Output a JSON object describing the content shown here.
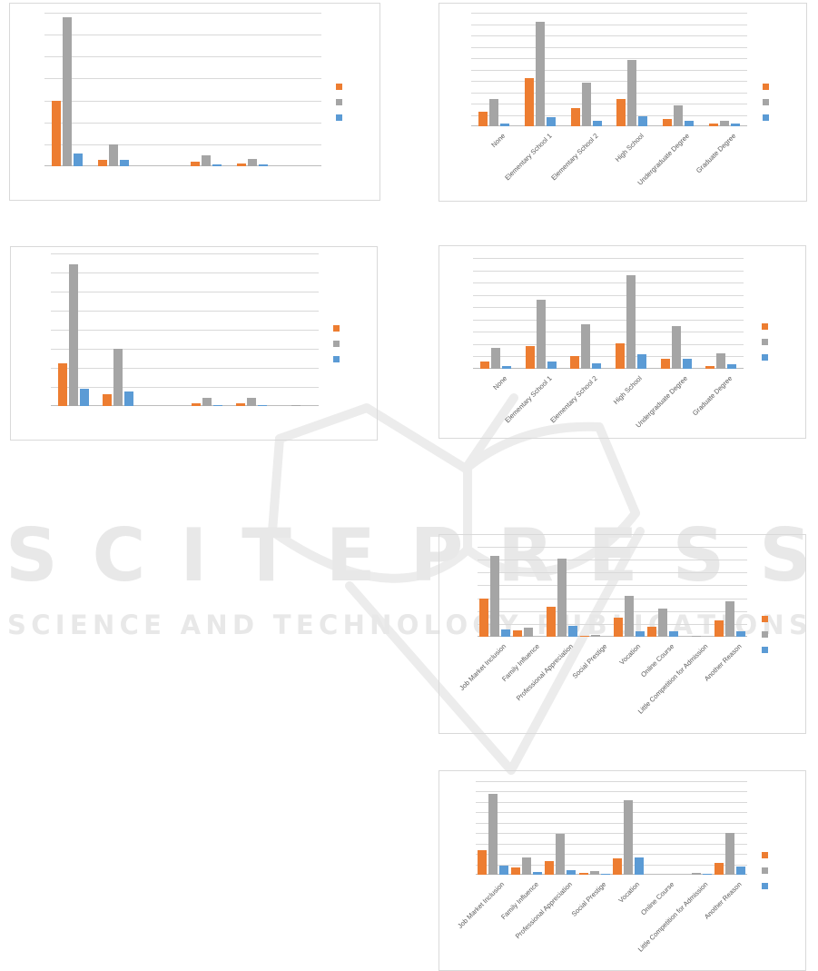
{
  "watermark": {
    "brand": "SCITEPRESS",
    "tagline": "SCIENCE AND TECHNOLOGY PUBLICATIONS",
    "color": "#e8e8e8"
  },
  "colors": {
    "series_orange": "#ED7D31",
    "series_gray": "#A5A5A5",
    "series_blue": "#5B9BD5",
    "gridline": "#D9D9D9",
    "chart_border": "#D9D9D9",
    "axis_label_text": "#595959"
  },
  "chart_data": [
    {
      "id": "c1",
      "position": "top-left",
      "type": "bar",
      "title": "",
      "xlabel": "",
      "ylabel": "",
      "axis_labels_visible": false,
      "gridline_intervals": 7,
      "ylim": [
        0,
        7
      ],
      "legend_position": "right",
      "legend_labels_visible": false,
      "categories": [
        "",
        "",
        "",
        "",
        "",
        ""
      ],
      "series": [
        {
          "name": "orange",
          "color": "#ED7D31",
          "values": [
            3.0,
            0.3,
            0,
            0.2,
            0.12,
            0
          ]
        },
        {
          "name": "gray",
          "color": "#A5A5A5",
          "values": [
            6.8,
            1.0,
            0,
            0.5,
            0.33,
            0
          ]
        },
        {
          "name": "blue",
          "color": "#5B9BD5",
          "values": [
            0.6,
            0.3,
            0,
            0.07,
            0.07,
            0
          ]
        }
      ]
    },
    {
      "id": "c2",
      "position": "top-right",
      "type": "bar",
      "title": "",
      "xlabel": "",
      "ylabel": "",
      "axis_labels_visible": true,
      "gridline_intervals": 10,
      "ylim": [
        0,
        10
      ],
      "legend_position": "right",
      "legend_labels_visible": false,
      "categories": [
        "None",
        "Elementary School 1",
        "Elementary School 2",
        "High School",
        "Undergraduate Degree",
        "Graduate Degree"
      ],
      "series": [
        {
          "name": "orange",
          "color": "#ED7D31",
          "values": [
            1.3,
            4.2,
            1.6,
            2.4,
            0.6,
            0.2
          ]
        },
        {
          "name": "gray",
          "color": "#A5A5A5",
          "values": [
            2.4,
            9.2,
            3.8,
            5.8,
            1.8,
            0.5
          ]
        },
        {
          "name": "blue",
          "color": "#5B9BD5",
          "values": [
            0.25,
            0.8,
            0.45,
            0.9,
            0.45,
            0.25
          ]
        }
      ]
    },
    {
      "id": "c3",
      "position": "middle-left",
      "type": "bar",
      "title": "",
      "xlabel": "",
      "ylabel": "",
      "axis_labels_visible": false,
      "gridline_intervals": 8,
      "ylim": [
        0,
        8
      ],
      "legend_position": "right",
      "legend_labels_visible": false,
      "categories": [
        "",
        "",
        "",
        "",
        "",
        ""
      ],
      "series": [
        {
          "name": "orange",
          "color": "#ED7D31",
          "values": [
            2.25,
            0.6,
            0,
            0.16,
            0.13,
            0
          ]
        },
        {
          "name": "gray",
          "color": "#A5A5A5",
          "values": [
            7.45,
            3.0,
            0,
            0.44,
            0.43,
            0.06
          ]
        },
        {
          "name": "blue",
          "color": "#5B9BD5",
          "values": [
            0.92,
            0.75,
            0,
            0.06,
            0.06,
            0
          ]
        }
      ]
    },
    {
      "id": "c4",
      "position": "middle-right",
      "type": "bar",
      "title": "",
      "xlabel": "",
      "ylabel": "",
      "axis_labels_visible": true,
      "gridline_intervals": 9,
      "ylim": [
        0,
        9
      ],
      "legend_position": "right",
      "legend_labels_visible": false,
      "categories": [
        "None",
        "Elementary School 1",
        "Elementary School 2",
        "High School",
        "Undergraduate Degree",
        "Graduate Degree"
      ],
      "series": [
        {
          "name": "orange",
          "color": "#ED7D31",
          "values": [
            0.6,
            1.85,
            1.0,
            2.1,
            0.8,
            0.25
          ]
        },
        {
          "name": "gray",
          "color": "#A5A5A5",
          "values": [
            1.7,
            5.6,
            3.6,
            7.6,
            3.45,
            1.25
          ]
        },
        {
          "name": "blue",
          "color": "#5B9BD5",
          "values": [
            0.25,
            0.6,
            0.45,
            1.2,
            0.8,
            0.4
          ]
        }
      ]
    },
    {
      "id": "c5",
      "position": "lower-right",
      "type": "bar",
      "title": "",
      "xlabel": "",
      "ylabel": "",
      "axis_labels_visible": true,
      "gridline_intervals": 7,
      "ylim": [
        0,
        7
      ],
      "legend_position": "right",
      "legend_labels_visible": false,
      "categories": [
        "Job Market Inclusion",
        "Family Influence",
        "Professional Appreciation",
        "Social Prestige",
        "Vocation",
        "Online Course",
        "Little Competition for Admission",
        "Another Reason"
      ],
      "series": [
        {
          "name": "orange",
          "color": "#ED7D31",
          "values": [
            3.0,
            0.52,
            2.3,
            0.1,
            1.5,
            0.75,
            0,
            1.3
          ]
        },
        {
          "name": "gray",
          "color": "#A5A5A5",
          "values": [
            6.3,
            0.7,
            6.1,
            0.15,
            3.2,
            2.2,
            0.1,
            2.75
          ]
        },
        {
          "name": "blue",
          "color": "#5B9BD5",
          "values": [
            0.57,
            0,
            0.82,
            0,
            0.45,
            0.45,
            0,
            0.4
          ]
        }
      ]
    },
    {
      "id": "c6",
      "position": "bottom-right",
      "type": "bar",
      "title": "",
      "xlabel": "",
      "ylabel": "",
      "axis_labels_visible": true,
      "gridline_intervals": 9,
      "ylim": [
        0,
        9
      ],
      "legend_position": "right",
      "legend_labels_visible": false,
      "categories": [
        "Job Market Inclusion",
        "Family Influence",
        "Professional Appreciation",
        "Social Prestige",
        "Vocation",
        "Online Course",
        "Little Competition for Admission",
        "Another Reason"
      ],
      "series": [
        {
          "name": "orange",
          "color": "#ED7D31",
          "values": [
            2.4,
            0.73,
            1.3,
            0.15,
            1.55,
            0,
            0,
            1.1
          ]
        },
        {
          "name": "gray",
          "color": "#A5A5A5",
          "values": [
            7.8,
            1.7,
            3.9,
            0.38,
            7.2,
            0,
            0.15,
            4.0
          ]
        },
        {
          "name": "blue",
          "color": "#5B9BD5",
          "values": [
            0.9,
            0.23,
            0.44,
            0.06,
            1.67,
            0,
            0.05,
            0.76
          ]
        }
      ]
    }
  ]
}
